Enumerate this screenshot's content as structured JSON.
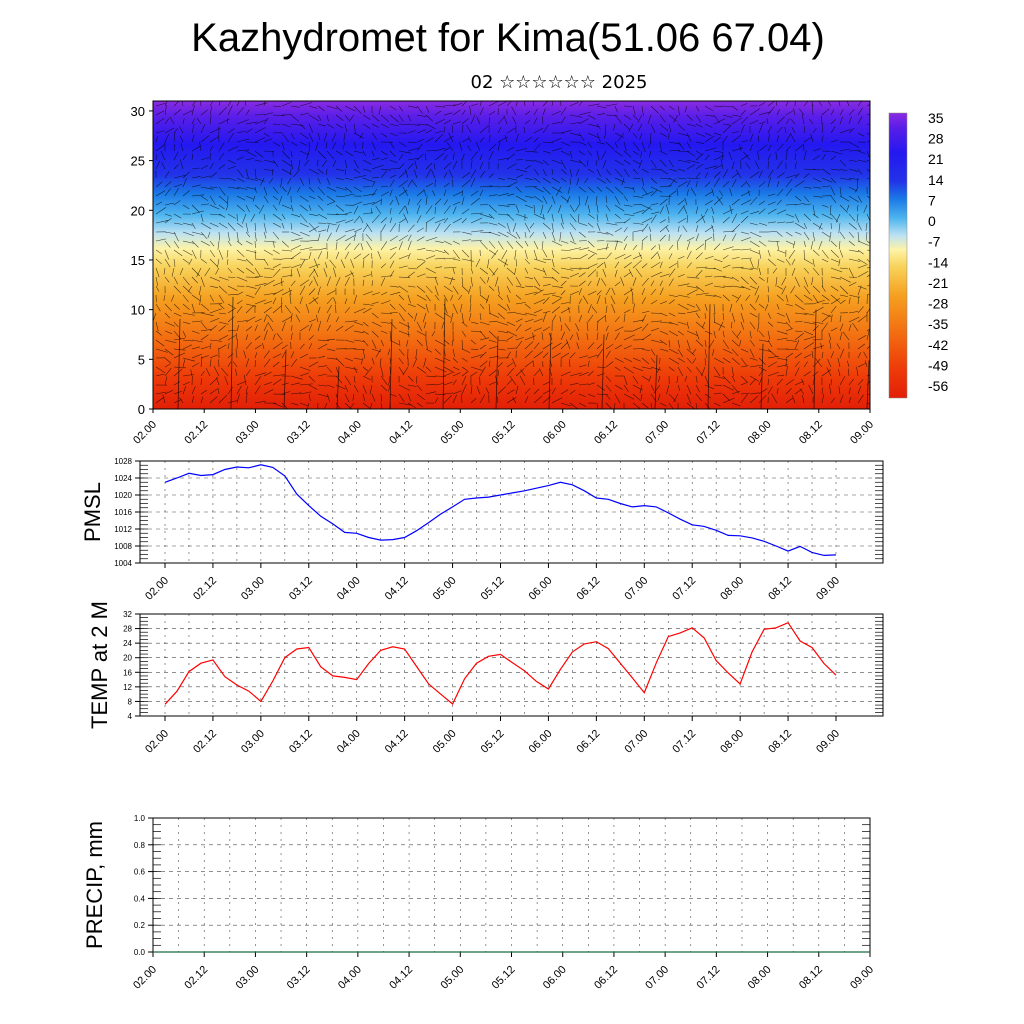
{
  "header": {
    "title": "Kazhydromet for Kima(51.06 67.04)",
    "subtitle": "02 ☆☆☆☆☆☆ 2025"
  },
  "colors": {
    "pmsl_line": "#0000ff",
    "temp_line": "#ff0000",
    "precip_line": "#1a6b3c",
    "grid": "#000000"
  },
  "chart_data": [
    {
      "id": "cross-section",
      "type": "heatmap",
      "title": "",
      "xlabel": "",
      "ylabel": "",
      "x_ticks": [
        "02.00",
        "02.12",
        "03.00",
        "03.12",
        "04.00",
        "04.12",
        "05.00",
        "05.12",
        "06.00",
        "06.12",
        "07.00",
        "07.12",
        "08.00",
        "08.12",
        "09.00"
      ],
      "y_ticks": [
        0,
        5,
        10,
        15,
        20,
        25,
        30
      ],
      "ylim": [
        0,
        31
      ],
      "colorbar": {
        "labels": [
          "35",
          "28",
          "21",
          "14",
          "7",
          "0",
          "-7",
          "-14",
          "-21",
          "-28",
          "-35",
          "-42",
          "-49",
          "-56"
        ]
      },
      "overlay": "wind arrows"
    },
    {
      "id": "pmsl",
      "type": "line",
      "ylabel": "PMSL",
      "x_ticks": [
        "02.00",
        "02.12",
        "03.00",
        "03.12",
        "04.00",
        "04.12",
        "05.00",
        "05.12",
        "06.00",
        "06.12",
        "07.00",
        "07.12",
        "08.00",
        "08.12",
        "09.00"
      ],
      "y_ticks": [
        1004,
        1008,
        1012,
        1016,
        1020,
        1024,
        1028
      ],
      "ylim": [
        1004,
        1028
      ],
      "x": [
        0,
        3,
        6,
        9,
        12,
        15,
        18,
        21,
        24,
        27,
        30,
        33,
        36,
        39,
        42,
        45,
        48,
        51,
        54,
        57,
        60,
        63,
        66,
        69,
        72,
        75,
        78,
        81,
        84,
        87,
        90,
        93,
        96,
        99,
        102,
        105,
        108,
        111,
        114,
        117,
        120,
        123,
        126,
        129,
        132,
        135,
        138,
        141,
        144,
        147,
        150,
        153,
        156,
        159,
        162,
        165,
        168
      ],
      "series": [
        {
          "values": [
            1023.0,
            1024.0,
            1025.1,
            1024.6,
            1024.8,
            1026.0,
            1026.6,
            1026.4,
            1027.1,
            1026.5,
            1024.5,
            1020.2,
            1017.5,
            1015.0,
            1013.2,
            1011.2,
            1011.0,
            1010.0,
            1009.4,
            1009.5,
            1010.0,
            1011.6,
            1013.5,
            1015.5,
            1017.2,
            1019.0,
            1019.3,
            1019.5,
            1020.0,
            1020.5,
            1021.0,
            1021.6,
            1022.2,
            1023.0,
            1022.4,
            1021.0,
            1019.3,
            1019.0,
            1018.0,
            1017.2,
            1017.5,
            1017.2,
            1015.8,
            1014.3,
            1013.0,
            1012.6,
            1011.7,
            1010.5,
            1010.4,
            1009.9,
            1009.1,
            1008.0,
            1006.8,
            1007.9,
            1006.5,
            1005.8,
            1005.9
          ]
        }
      ]
    },
    {
      "id": "temp2m",
      "type": "line",
      "ylabel": "TEMP at 2 M",
      "x_ticks": [
        "02.00",
        "02.12",
        "03.00",
        "03.12",
        "04.00",
        "04.12",
        "05.00",
        "05.12",
        "06.00",
        "06.12",
        "07.00",
        "07.12",
        "08.00",
        "08.12",
        "09.00"
      ],
      "y_ticks": [
        4,
        8,
        12,
        16,
        20,
        24,
        28,
        32
      ],
      "ylim": [
        4,
        32
      ],
      "x": [
        0,
        3,
        6,
        9,
        12,
        15,
        18,
        21,
        24,
        27,
        30,
        33,
        36,
        39,
        42,
        45,
        48,
        51,
        54,
        57,
        60,
        63,
        66,
        69,
        72,
        75,
        78,
        81,
        84,
        87,
        90,
        93,
        96,
        99,
        102,
        105,
        108,
        111,
        114,
        117,
        120,
        123,
        126,
        129,
        132,
        135,
        138,
        141,
        144,
        147,
        150,
        153,
        156,
        159,
        162,
        165,
        168
      ],
      "series": [
        {
          "values": [
            7.2,
            10.8,
            16.2,
            18.5,
            19.4,
            14.8,
            12.5,
            10.8,
            8.0,
            13.6,
            20.0,
            22.4,
            22.8,
            17.5,
            15.0,
            14.6,
            14.0,
            18.4,
            22.0,
            23.0,
            22.4,
            17.6,
            12.8,
            10.0,
            7.3,
            14.2,
            18.5,
            20.4,
            20.9,
            18.6,
            16.4,
            13.5,
            11.4,
            16.8,
            21.6,
            23.8,
            24.4,
            22.5,
            18.5,
            14.5,
            10.4,
            18.6,
            25.8,
            26.8,
            28.2,
            25.4,
            19.2,
            15.8,
            12.8,
            21.6,
            27.8,
            28.2,
            29.6,
            24.6,
            22.8,
            18.4,
            15.2
          ]
        }
      ]
    },
    {
      "id": "precip",
      "type": "line",
      "ylabel": "PRECIP, mm",
      "x_ticks": [
        "02.00",
        "02.12",
        "03.00",
        "03.12",
        "04.00",
        "04.12",
        "05.00",
        "05.12",
        "06.00",
        "06.12",
        "07.00",
        "07.12",
        "08.00",
        "08.12",
        "09.00"
      ],
      "y_ticks": [
        "0.0",
        "0.2",
        "0.4",
        "0.6",
        "0.8",
        "1.0"
      ],
      "ylim": [
        0,
        1
      ],
      "x": [
        0,
        168
      ],
      "series": [
        {
          "values": [
            0,
            0
          ]
        }
      ]
    }
  ]
}
